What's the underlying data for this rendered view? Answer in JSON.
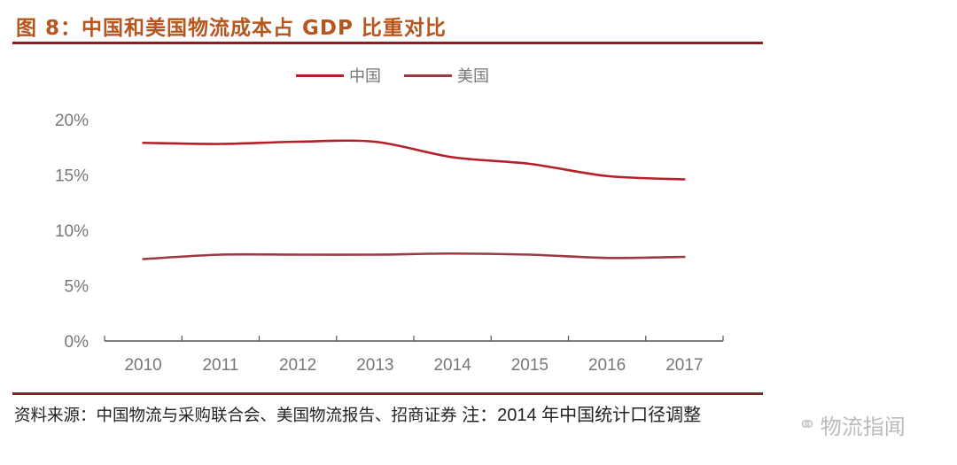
{
  "header": {
    "title": "图 8：中国和美国物流成本占 GDP 比重对比"
  },
  "footer": {
    "source": "资料来源：中国物流与采购联合会、美国物流报告、招商证券",
    "note": " 注：2014 年中国统计口径调整",
    "watermark": "物流指闻",
    "watermark_icon": "wechat-icon"
  },
  "colors": {
    "title": "#b5561e",
    "rule": "#8f1d22",
    "china": "#b51f2a",
    "usa": "#9b3a44",
    "axis_text": "#777777"
  },
  "chart_data": {
    "type": "line",
    "title": "中国和美国物流成本占 GDP 比重对比",
    "xlabel": "",
    "ylabel": "",
    "categories": [
      "2010",
      "2011",
      "2012",
      "2013",
      "2014",
      "2015",
      "2016",
      "2017"
    ],
    "series": [
      {
        "name": "中国",
        "color": "#b51f2a",
        "values": [
          17.9,
          17.8,
          18.0,
          18.0,
          16.6,
          16.0,
          14.9,
          14.6
        ]
      },
      {
        "name": "美国",
        "color": "#9b3a44",
        "values": [
          7.4,
          7.8,
          7.8,
          7.8,
          7.9,
          7.8,
          7.5,
          7.6
        ]
      }
    ],
    "ylim": [
      0,
      20
    ],
    "yticks": [
      0,
      5,
      10,
      15,
      20
    ],
    "ytick_labels": [
      "0%",
      "5%",
      "10%",
      "15%",
      "20%"
    ],
    "grid": false,
    "legend_position": "top-center"
  }
}
